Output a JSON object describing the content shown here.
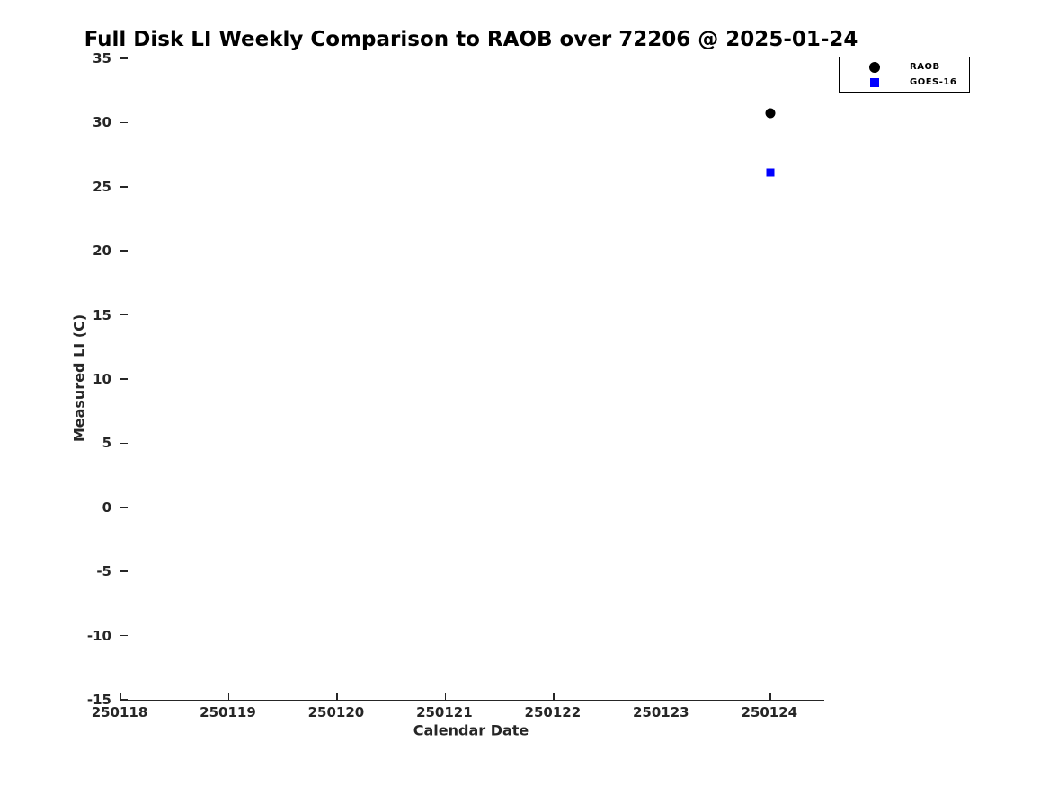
{
  "colors": {
    "axis": "#262626",
    "title_text": "#000000",
    "background": "#ffffff",
    "raob": "#000000",
    "goes16": "#0000ff"
  },
  "chart_data": {
    "type": "scatter",
    "title": "Full Disk LI Weekly Comparison to RAOB over 72206 @ 2025-01-24",
    "xlabel": "Calendar Date",
    "ylabel": "Measured LI (C)",
    "xlim": [
      250118,
      250124.5
    ],
    "ylim": [
      -15,
      35
    ],
    "xticks": [
      250118,
      250119,
      250120,
      250121,
      250122,
      250123,
      250124
    ],
    "yticks": [
      35,
      30,
      25,
      20,
      15,
      10,
      5,
      0,
      -5,
      -10,
      -15
    ],
    "grid": false,
    "legend_position": "top-right",
    "series": [
      {
        "name": "RAOB",
        "marker": "circle",
        "color": "#000000",
        "marker_size": 11,
        "points": [
          {
            "x": 250124,
            "y": 30.7
          }
        ]
      },
      {
        "name": "GOES-16",
        "marker": "square",
        "color": "#0000ff",
        "marker_size": 9,
        "points": [
          {
            "x": 250124,
            "y": 26.1
          }
        ]
      }
    ]
  }
}
